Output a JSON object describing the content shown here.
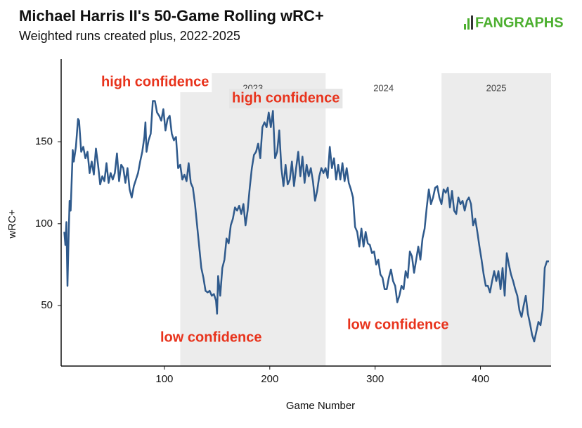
{
  "chart_data": {
    "type": "line",
    "title": "Michael Harris II's 50-Game Rolling wRC+",
    "subtitle": "Weighted runs created plus, 2022-2025",
    "logo": "FANGRAPHS",
    "x_label": "Game Number",
    "y_label": "wRC+",
    "color": "#2f5a8c",
    "xlim": [
      2,
      467
    ],
    "xticks": [
      100,
      200,
      300,
      400
    ],
    "ylim": [
      13,
      192
    ],
    "yticks": [
      50,
      100,
      150
    ],
    "seasons": [
      {
        "label": "2023",
        "start": 115,
        "end": 253,
        "shaded": true
      },
      {
        "label": "2024",
        "start": 253,
        "end": 363,
        "shaded": false
      },
      {
        "label": "2025",
        "start": 363,
        "end": 467,
        "shaded": true
      }
    ],
    "annotations": [
      "high confidence",
      "high confidence",
      "low confidence",
      "low confidence"
    ],
    "x": [
      5,
      6,
      7,
      8,
      9,
      10,
      11,
      13,
      14,
      16,
      18,
      19,
      21,
      23,
      25,
      27,
      29,
      31,
      33,
      35,
      37,
      39,
      41,
      43,
      45,
      47,
      49,
      51,
      53,
      55,
      57,
      59,
      61,
      63,
      65,
      67,
      69,
      71,
      73,
      75,
      77,
      79,
      81,
      82,
      83,
      85,
      87,
      89,
      91,
      93,
      95,
      97,
      99,
      101,
      103,
      105,
      107,
      109,
      111,
      113,
      115,
      117,
      119,
      121,
      123,
      125,
      127,
      129,
      131,
      133,
      135,
      137,
      139,
      141,
      143,
      145,
      147,
      149,
      150,
      151,
      153,
      155,
      157,
      159,
      161,
      163,
      165,
      167,
      169,
      171,
      173,
      175,
      177,
      179,
      181,
      183,
      185,
      187,
      189,
      191,
      193,
      195,
      197,
      199,
      201,
      203,
      205,
      207,
      209,
      211,
      213,
      215,
      217,
      219,
      221,
      223,
      225,
      227,
      229,
      231,
      233,
      235,
      237,
      239,
      241,
      243,
      245,
      247,
      249,
      251,
      253,
      255,
      257,
      259,
      261,
      263,
      265,
      267,
      269,
      271,
      273,
      275,
      277,
      279,
      281,
      283,
      285,
      287,
      289,
      291,
      293,
      295,
      297,
      299,
      301,
      303,
      305,
      307,
      309,
      311,
      313,
      315,
      317,
      319,
      321,
      323,
      325,
      327,
      329,
      331,
      333,
      335,
      337,
      339,
      341,
      343,
      345,
      347,
      349,
      351,
      353,
      355,
      357,
      359,
      361,
      363,
      365,
      367,
      369,
      371,
      373,
      375,
      377,
      379,
      381,
      383,
      385,
      387,
      389,
      391,
      393,
      395,
      397,
      399,
      401,
      403,
      405,
      407,
      409,
      411,
      413,
      415,
      417,
      419,
      421,
      423,
      425,
      427,
      429,
      431,
      433,
      435,
      437,
      439,
      441,
      443,
      445,
      447,
      449,
      451,
      453,
      455,
      457,
      459,
      461,
      463,
      465
    ],
    "values": [
      95,
      87,
      101,
      62,
      90,
      114,
      108,
      145,
      138,
      147,
      164,
      163,
      144,
      147,
      140,
      144,
      131,
      138,
      130,
      146,
      136,
      124,
      129,
      126,
      137,
      125,
      131,
      127,
      131,
      143,
      126,
      136,
      134,
      125,
      134,
      121,
      116,
      123,
      127,
      131,
      138,
      144,
      153,
      162,
      144,
      151,
      155,
      175,
      175,
      168,
      166,
      163,
      170,
      157,
      164,
      166,
      155,
      151,
      153,
      134,
      136,
      127,
      130,
      126,
      137,
      125,
      122,
      112,
      99,
      86,
      73,
      67,
      59,
      58,
      59,
      56,
      57,
      53,
      45,
      68,
      56,
      73,
      78,
      91,
      88,
      99,
      103,
      110,
      108,
      111,
      106,
      112,
      99,
      108,
      122,
      134,
      142,
      144,
      149,
      140,
      159,
      162,
      159,
      168,
      159,
      169,
      140,
      144,
      157,
      134,
      123,
      136,
      124,
      127,
      138,
      123,
      134,
      144,
      129,
      141,
      125,
      136,
      129,
      134,
      126,
      114,
      120,
      129,
      134,
      131,
      134,
      128,
      147,
      134,
      140,
      127,
      136,
      127,
      137,
      126,
      134,
      125,
      121,
      116,
      98,
      95,
      86,
      97,
      86,
      95,
      88,
      87,
      82,
      83,
      75,
      78,
      69,
      67,
      60,
      60,
      67,
      72,
      65,
      62,
      52,
      56,
      62,
      60,
      71,
      67,
      83,
      80,
      70,
      78,
      86,
      78,
      91,
      97,
      110,
      121,
      112,
      116,
      122,
      123,
      116,
      112,
      121,
      119,
      122,
      110,
      120,
      108,
      106,
      116,
      112,
      114,
      108,
      114,
      116,
      112,
      99,
      103,
      95,
      86,
      78,
      69,
      62,
      62,
      58,
      65,
      71,
      65,
      71,
      60,
      73,
      56,
      82,
      75,
      69,
      65,
      60,
      56,
      47,
      43,
      50,
      56,
      45,
      39,
      32,
      28,
      34,
      40,
      38,
      47,
      73,
      77,
      77
    ]
  }
}
